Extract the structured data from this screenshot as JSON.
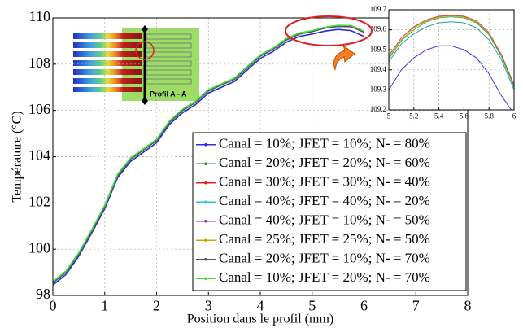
{
  "chart_data": [
    {
      "type": "line",
      "x_label": "Position dans le profil (mm)",
      "y_label": "Température (°C)",
      "annotation": "Profil A - A",
      "xlim": [
        0,
        8
      ],
      "ylim": [
        98,
        110
      ],
      "xticks": [
        0,
        1,
        2,
        3,
        4,
        5,
        6,
        7,
        8
      ],
      "yticks": [
        98,
        100,
        102,
        104,
        106,
        108,
        110
      ],
      "grid": true,
      "legend": "lower right",
      "x": [
        0,
        0.25,
        0.5,
        0.75,
        1,
        1.25,
        1.5,
        1.75,
        2,
        2.25,
        2.5,
        2.75,
        3,
        3.25,
        3.5,
        3.75,
        4,
        4.25,
        4.5,
        4.75,
        5,
        5.25,
        5.5,
        5.75,
        6
      ],
      "series": [
        {
          "name": "Canal = 10%; JFET = 10%; N- = 80%",
          "color": "#2b2bd6",
          "values": [
            98.45,
            98.9,
            99.7,
            100.7,
            101.75,
            103.1,
            103.8,
            104.2,
            104.6,
            105.4,
            105.9,
            106.25,
            106.75,
            107.0,
            107.25,
            107.75,
            108.25,
            108.55,
            108.95,
            109.2,
            109.3,
            109.43,
            109.5,
            109.45,
            109.2
          ]
        },
        {
          "name": "Canal = 20%; JFET = 20%; N- = 60%",
          "color": "#1f8f1f",
          "values": [
            98.55,
            99.0,
            99.8,
            100.8,
            101.85,
            103.2,
            103.9,
            104.3,
            104.7,
            105.5,
            106.0,
            106.35,
            106.85,
            107.1,
            107.35,
            107.85,
            108.35,
            108.65,
            109.05,
            109.3,
            109.42,
            109.57,
            109.65,
            109.64,
            109.4
          ]
        },
        {
          "name": "Canal = 30%; JFET = 30%; N- = 40%",
          "color": "#e02020",
          "values": [
            98.55,
            99.0,
            99.8,
            100.8,
            101.85,
            103.2,
            103.9,
            104.3,
            104.7,
            105.5,
            106.0,
            106.35,
            106.85,
            107.1,
            107.35,
            107.85,
            108.35,
            108.65,
            109.05,
            109.3,
            109.43,
            109.59,
            109.67,
            109.66,
            109.42
          ]
        },
        {
          "name": "Canal = 40%; JFET = 40%; N- = 20%",
          "color": "#22c4c4",
          "values": [
            98.55,
            99.0,
            99.8,
            100.8,
            101.85,
            103.2,
            103.9,
            104.3,
            104.7,
            105.5,
            106.0,
            106.35,
            106.85,
            107.1,
            107.35,
            107.85,
            108.35,
            108.65,
            109.05,
            109.3,
            109.41,
            109.56,
            109.63,
            109.62,
            109.38
          ]
        },
        {
          "name": "Canal = 40%; JFET = 10%; N- = 50%",
          "color": "#9a22b4",
          "values": [
            98.55,
            99.0,
            99.8,
            100.8,
            101.85,
            103.2,
            103.9,
            104.3,
            104.7,
            105.5,
            106.0,
            106.35,
            106.85,
            107.1,
            107.35,
            107.85,
            108.35,
            108.65,
            109.05,
            109.3,
            109.41,
            109.56,
            109.63,
            109.62,
            109.38
          ]
        },
        {
          "name": "Canal = 25%; JFET = 25%; N- = 50%",
          "color": "#c8a800",
          "values": [
            98.55,
            99.0,
            99.8,
            100.8,
            101.85,
            103.2,
            103.9,
            104.3,
            104.7,
            105.5,
            106.0,
            106.35,
            106.85,
            107.1,
            107.35,
            107.85,
            108.35,
            108.65,
            109.05,
            109.3,
            109.43,
            109.59,
            109.67,
            109.66,
            109.42
          ]
        },
        {
          "name": "Canal = 20%; JFET = 10%; N- = 70%",
          "color": "#555555",
          "values": [
            98.55,
            99.0,
            99.8,
            100.8,
            101.85,
            103.2,
            103.9,
            104.3,
            104.7,
            105.5,
            106.0,
            106.35,
            106.85,
            107.1,
            107.35,
            107.85,
            108.35,
            108.65,
            109.05,
            109.3,
            109.42,
            109.57,
            109.65,
            109.64,
            109.4
          ]
        },
        {
          "name": "Canal = 10%; JFET = 20%; N- = 70%",
          "color": "#3de03d",
          "values": [
            98.6,
            99.05,
            99.85,
            100.85,
            101.9,
            103.25,
            103.95,
            104.35,
            104.75,
            105.55,
            106.05,
            106.4,
            106.9,
            107.15,
            107.4,
            107.9,
            108.4,
            108.7,
            109.1,
            109.35,
            109.45,
            109.6,
            109.68,
            109.67,
            109.43
          ]
        }
      ]
    },
    {
      "type": "line",
      "xlim": [
        5,
        6
      ],
      "ylim": [
        109.2,
        109.7
      ],
      "xticks": [
        5,
        5.2,
        5.4,
        5.6,
        5.8,
        6
      ],
      "yticks": [
        109.2,
        109.3,
        109.4,
        109.5,
        109.6,
        109.7
      ],
      "grid": true,
      "x": [
        5,
        5.1,
        5.2,
        5.3,
        5.4,
        5.5,
        5.6,
        5.7,
        5.8,
        5.9,
        6
      ],
      "series": [
        {
          "color": "#3a3ae0",
          "values": [
            109.3,
            109.4,
            109.46,
            109.5,
            109.52,
            109.52,
            109.5,
            109.46,
            109.38,
            109.27,
            109.18
          ]
        },
        {
          "color": "#22a0a0",
          "values": [
            109.44,
            109.53,
            109.58,
            109.615,
            109.635,
            109.64,
            109.635,
            109.61,
            109.55,
            109.45,
            109.3
          ]
        },
        {
          "color": "#c8a800",
          "values": [
            109.46,
            109.55,
            109.61,
            109.645,
            109.665,
            109.67,
            109.665,
            109.64,
            109.58,
            109.47,
            109.32
          ]
        },
        {
          "color": "#e04040",
          "values": [
            109.47,
            109.56,
            109.615,
            109.65,
            109.668,
            109.672,
            109.668,
            109.645,
            109.585,
            109.475,
            109.325
          ]
        },
        {
          "color": "#3db03d",
          "values": [
            109.455,
            109.545,
            109.6,
            109.64,
            109.66,
            109.665,
            109.66,
            109.635,
            109.575,
            109.465,
            109.315
          ]
        }
      ]
    }
  ]
}
